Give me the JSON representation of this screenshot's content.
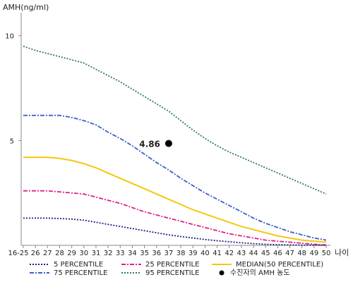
{
  "chart_data": {
    "type": "line",
    "ylabel": "AMH(ng/ml)",
    "xlabel": "나이",
    "x_categories": [
      "16-25",
      "26",
      "27",
      "28",
      "29",
      "30",
      "31",
      "32",
      "33",
      "34",
      "35",
      "36",
      "37",
      "38",
      "39",
      "40",
      "41",
      "42",
      "43",
      "44",
      "45",
      "46",
      "47",
      "48",
      "49",
      "50"
    ],
    "y_ticks": [
      5,
      10
    ],
    "ylim": [
      0,
      11.1
    ],
    "series": [
      {
        "name": "95 PERCENTILE",
        "color": "#2e7d4f",
        "dash": "2,2",
        "values": [
          9.5,
          9.3,
          9.15,
          9.0,
          8.85,
          8.7,
          8.4,
          8.1,
          7.8,
          7.45,
          7.1,
          6.75,
          6.4,
          5.95,
          5.5,
          5.1,
          4.75,
          4.45,
          4.2,
          3.95,
          3.7,
          3.45,
          3.2,
          2.95,
          2.7,
          2.45
        ]
      },
      {
        "name": "75 PERCENTILE",
        "color": "#3a5fc8",
        "dash": "6,2,2,2",
        "values": [
          6.2,
          6.2,
          6.2,
          6.2,
          6.1,
          5.95,
          5.75,
          5.4,
          5.1,
          4.75,
          4.35,
          3.95,
          3.6,
          3.2,
          2.85,
          2.5,
          2.2,
          1.9,
          1.6,
          1.3,
          1.05,
          0.85,
          0.65,
          0.5,
          0.35,
          0.25
        ]
      },
      {
        "name": "MEDIAN(50 PERCENTILE)",
        "color": "#f2c80f",
        "dash": "",
        "values": [
          4.2,
          4.2,
          4.2,
          4.15,
          4.05,
          3.9,
          3.7,
          3.45,
          3.2,
          2.95,
          2.7,
          2.45,
          2.2,
          1.95,
          1.7,
          1.5,
          1.3,
          1.1,
          0.9,
          0.75,
          0.6,
          0.45,
          0.35,
          0.25,
          0.2,
          0.15
        ]
      },
      {
        "name": "25 PERCENTILE",
        "color": "#e0208a",
        "dash": "6,2,2,2",
        "values": [
          2.6,
          2.6,
          2.6,
          2.55,
          2.5,
          2.45,
          2.3,
          2.15,
          2.0,
          1.8,
          1.6,
          1.45,
          1.3,
          1.15,
          1.0,
          0.85,
          0.7,
          0.55,
          0.45,
          0.35,
          0.25,
          0.2,
          0.15,
          0.1,
          0.05,
          0.02
        ]
      },
      {
        "name": "5 PERCENTILE",
        "color": "#1a237e",
        "dash": "2,2",
        "values": [
          1.3,
          1.3,
          1.3,
          1.28,
          1.25,
          1.2,
          1.1,
          1.0,
          0.9,
          0.8,
          0.7,
          0.6,
          0.5,
          0.42,
          0.35,
          0.28,
          0.22,
          0.17,
          0.12,
          0.08,
          0.05,
          0.03,
          0.02,
          0.01,
          0.01,
          0.0
        ]
      }
    ],
    "points": [
      {
        "x": "37",
        "y": 4.86,
        "label": "4.86",
        "name": "수진자의 AMH 농도",
        "color": "#000000"
      }
    ],
    "legend": {
      "placement": "bottom",
      "entries": [
        "5 PERCENTILE",
        "25 PERCENTILE",
        "MEDIAN(50 PERCENTILE)",
        "75 PERCENTILE",
        "95 PERCENTILE",
        "수진자의 AMH 농도"
      ]
    }
  }
}
